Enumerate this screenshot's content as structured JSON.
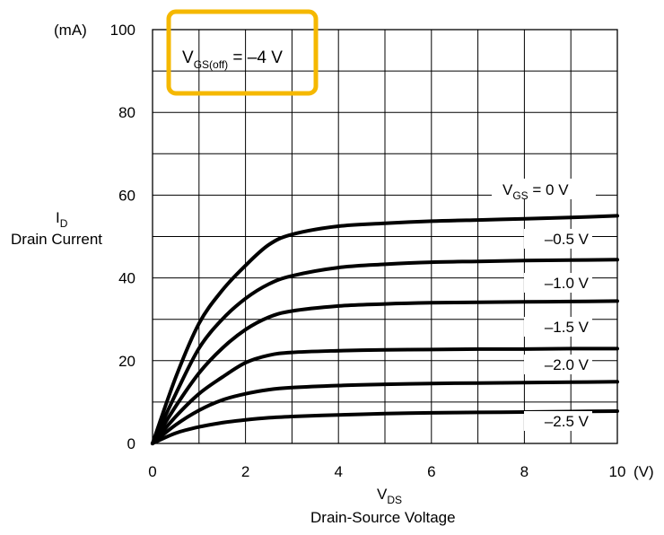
{
  "chart_data": {
    "type": "line",
    "title": "",
    "y_unit_label": "(mA)",
    "x_unit_label": "(V)",
    "ylabel": {
      "symbol": "I",
      "subscript": "D",
      "text": "Drain Current"
    },
    "xlabel": {
      "symbol": "V",
      "subscript": "DS",
      "text": "Drain-Source Voltage"
    },
    "xlim": [
      0,
      10
    ],
    "ylim": [
      0,
      100
    ],
    "x_ticks": [
      "0",
      "2",
      "4",
      "6",
      "8",
      "10"
    ],
    "y_ticks": [
      "0",
      "20",
      "40",
      "60",
      "80",
      "100"
    ],
    "grid": true,
    "annotation": {
      "prefix": "V",
      "subscript": "GS(off)",
      "suffix": " = –4 V",
      "highlight_color": "#F5B800"
    },
    "curve_label_prefix": {
      "symbol": "V",
      "subscript": "GS",
      "suffix": " = 0 V"
    },
    "series": [
      {
        "name": "0 V",
        "label": "V_GS = 0 V",
        "x": [
          0,
          0.5,
          1,
          1.5,
          2,
          2.5,
          3,
          4,
          5,
          6,
          7,
          8,
          9,
          10
        ],
        "y": [
          0,
          16,
          29,
          37,
          43,
          48,
          50.5,
          52.5,
          53.2,
          53.7,
          54,
          54.3,
          54.6,
          55
        ]
      },
      {
        "name": "–0.5 V",
        "x": [
          0,
          0.5,
          1,
          1.5,
          2,
          2.5,
          3,
          4,
          5,
          6,
          7,
          8,
          9,
          10
        ],
        "y": [
          0,
          12,
          23,
          30,
          35,
          38.5,
          40.5,
          42.5,
          43.3,
          43.8,
          44,
          44.2,
          44.3,
          44.4
        ]
      },
      {
        "name": "–1.0 V",
        "x": [
          0,
          0.5,
          1,
          1.5,
          2,
          2.5,
          3,
          4,
          5,
          6,
          7,
          8,
          9,
          10
        ],
        "y": [
          0,
          9,
          17,
          23,
          27.5,
          30.5,
          32,
          33.2,
          33.7,
          34,
          34.1,
          34.2,
          34.3,
          34.4
        ]
      },
      {
        "name": "–1.5 V",
        "x": [
          0,
          0.5,
          1,
          1.5,
          2,
          2.5,
          3,
          4,
          5,
          6,
          7,
          8,
          9,
          10
        ],
        "y": [
          0,
          6.5,
          12,
          16,
          19.5,
          21.3,
          22,
          22.4,
          22.6,
          22.7,
          22.8,
          22.8,
          22.9,
          22.9
        ]
      },
      {
        "name": "–2.0 V",
        "x": [
          0,
          0.5,
          1,
          1.5,
          2,
          2.5,
          3,
          4,
          5,
          6,
          7,
          8,
          9,
          10
        ],
        "y": [
          0,
          4.5,
          8,
          10.5,
          12,
          13,
          13.5,
          14,
          14.3,
          14.5,
          14.6,
          14.7,
          14.8,
          14.9
        ]
      },
      {
        "name": "–2.5 V",
        "x": [
          0,
          0.5,
          1,
          1.5,
          2,
          2.5,
          3,
          4,
          5,
          6,
          7,
          8,
          9,
          10
        ],
        "y": [
          0,
          2.5,
          4,
          5,
          5.7,
          6.2,
          6.5,
          6.9,
          7.2,
          7.4,
          7.5,
          7.6,
          7.7,
          7.8
        ]
      }
    ],
    "line_color": "#000000"
  }
}
